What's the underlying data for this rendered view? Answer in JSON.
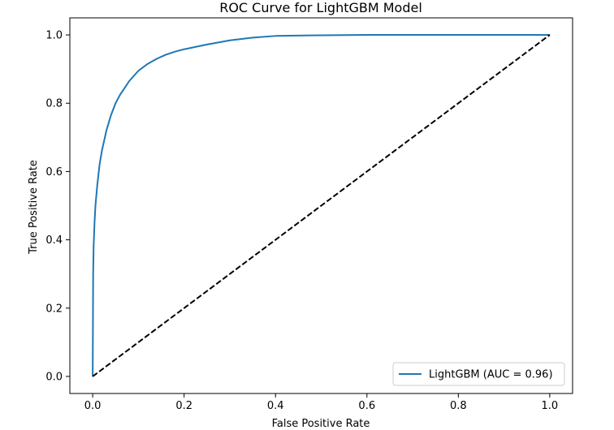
{
  "chart_data": {
    "type": "line",
    "title": "ROC Curve for LightGBM Model",
    "xlabel": "False Positive Rate",
    "ylabel": "True Positive Rate",
    "xlim": [
      -0.05,
      1.05
    ],
    "ylim": [
      -0.05,
      1.05
    ],
    "xticks": [
      "0.0",
      "0.2",
      "0.4",
      "0.6",
      "0.8",
      "1.0"
    ],
    "yticks": [
      "0.0",
      "0.2",
      "0.4",
      "0.6",
      "0.8",
      "1.0"
    ],
    "grid": false,
    "legend_position": "lower-right",
    "series": [
      {
        "name": "LightGBM (AUC = 0.96)",
        "color": "#1f77b4",
        "style": "solid",
        "x": [
          0.0,
          0.0005,
          0.001,
          0.002,
          0.004,
          0.006,
          0.01,
          0.015,
          0.02,
          0.03,
          0.04,
          0.05,
          0.06,
          0.07,
          0.08,
          0.1,
          0.12,
          0.14,
          0.16,
          0.18,
          0.2,
          0.25,
          0.3,
          0.35,
          0.4,
          0.5,
          0.6,
          0.7,
          0.8,
          0.9,
          1.0
        ],
        "y": [
          0.0,
          0.15,
          0.3,
          0.38,
          0.45,
          0.5,
          0.56,
          0.62,
          0.66,
          0.72,
          0.765,
          0.8,
          0.825,
          0.845,
          0.865,
          0.895,
          0.915,
          0.93,
          0.942,
          0.951,
          0.958,
          0.972,
          0.984,
          0.992,
          0.997,
          0.999,
          1.0,
          1.0,
          1.0,
          1.0,
          1.0
        ]
      },
      {
        "name": "",
        "color": "#000000",
        "style": "dashed",
        "x": [
          0.0,
          1.0
        ],
        "y": [
          0.0,
          1.0
        ]
      }
    ]
  }
}
